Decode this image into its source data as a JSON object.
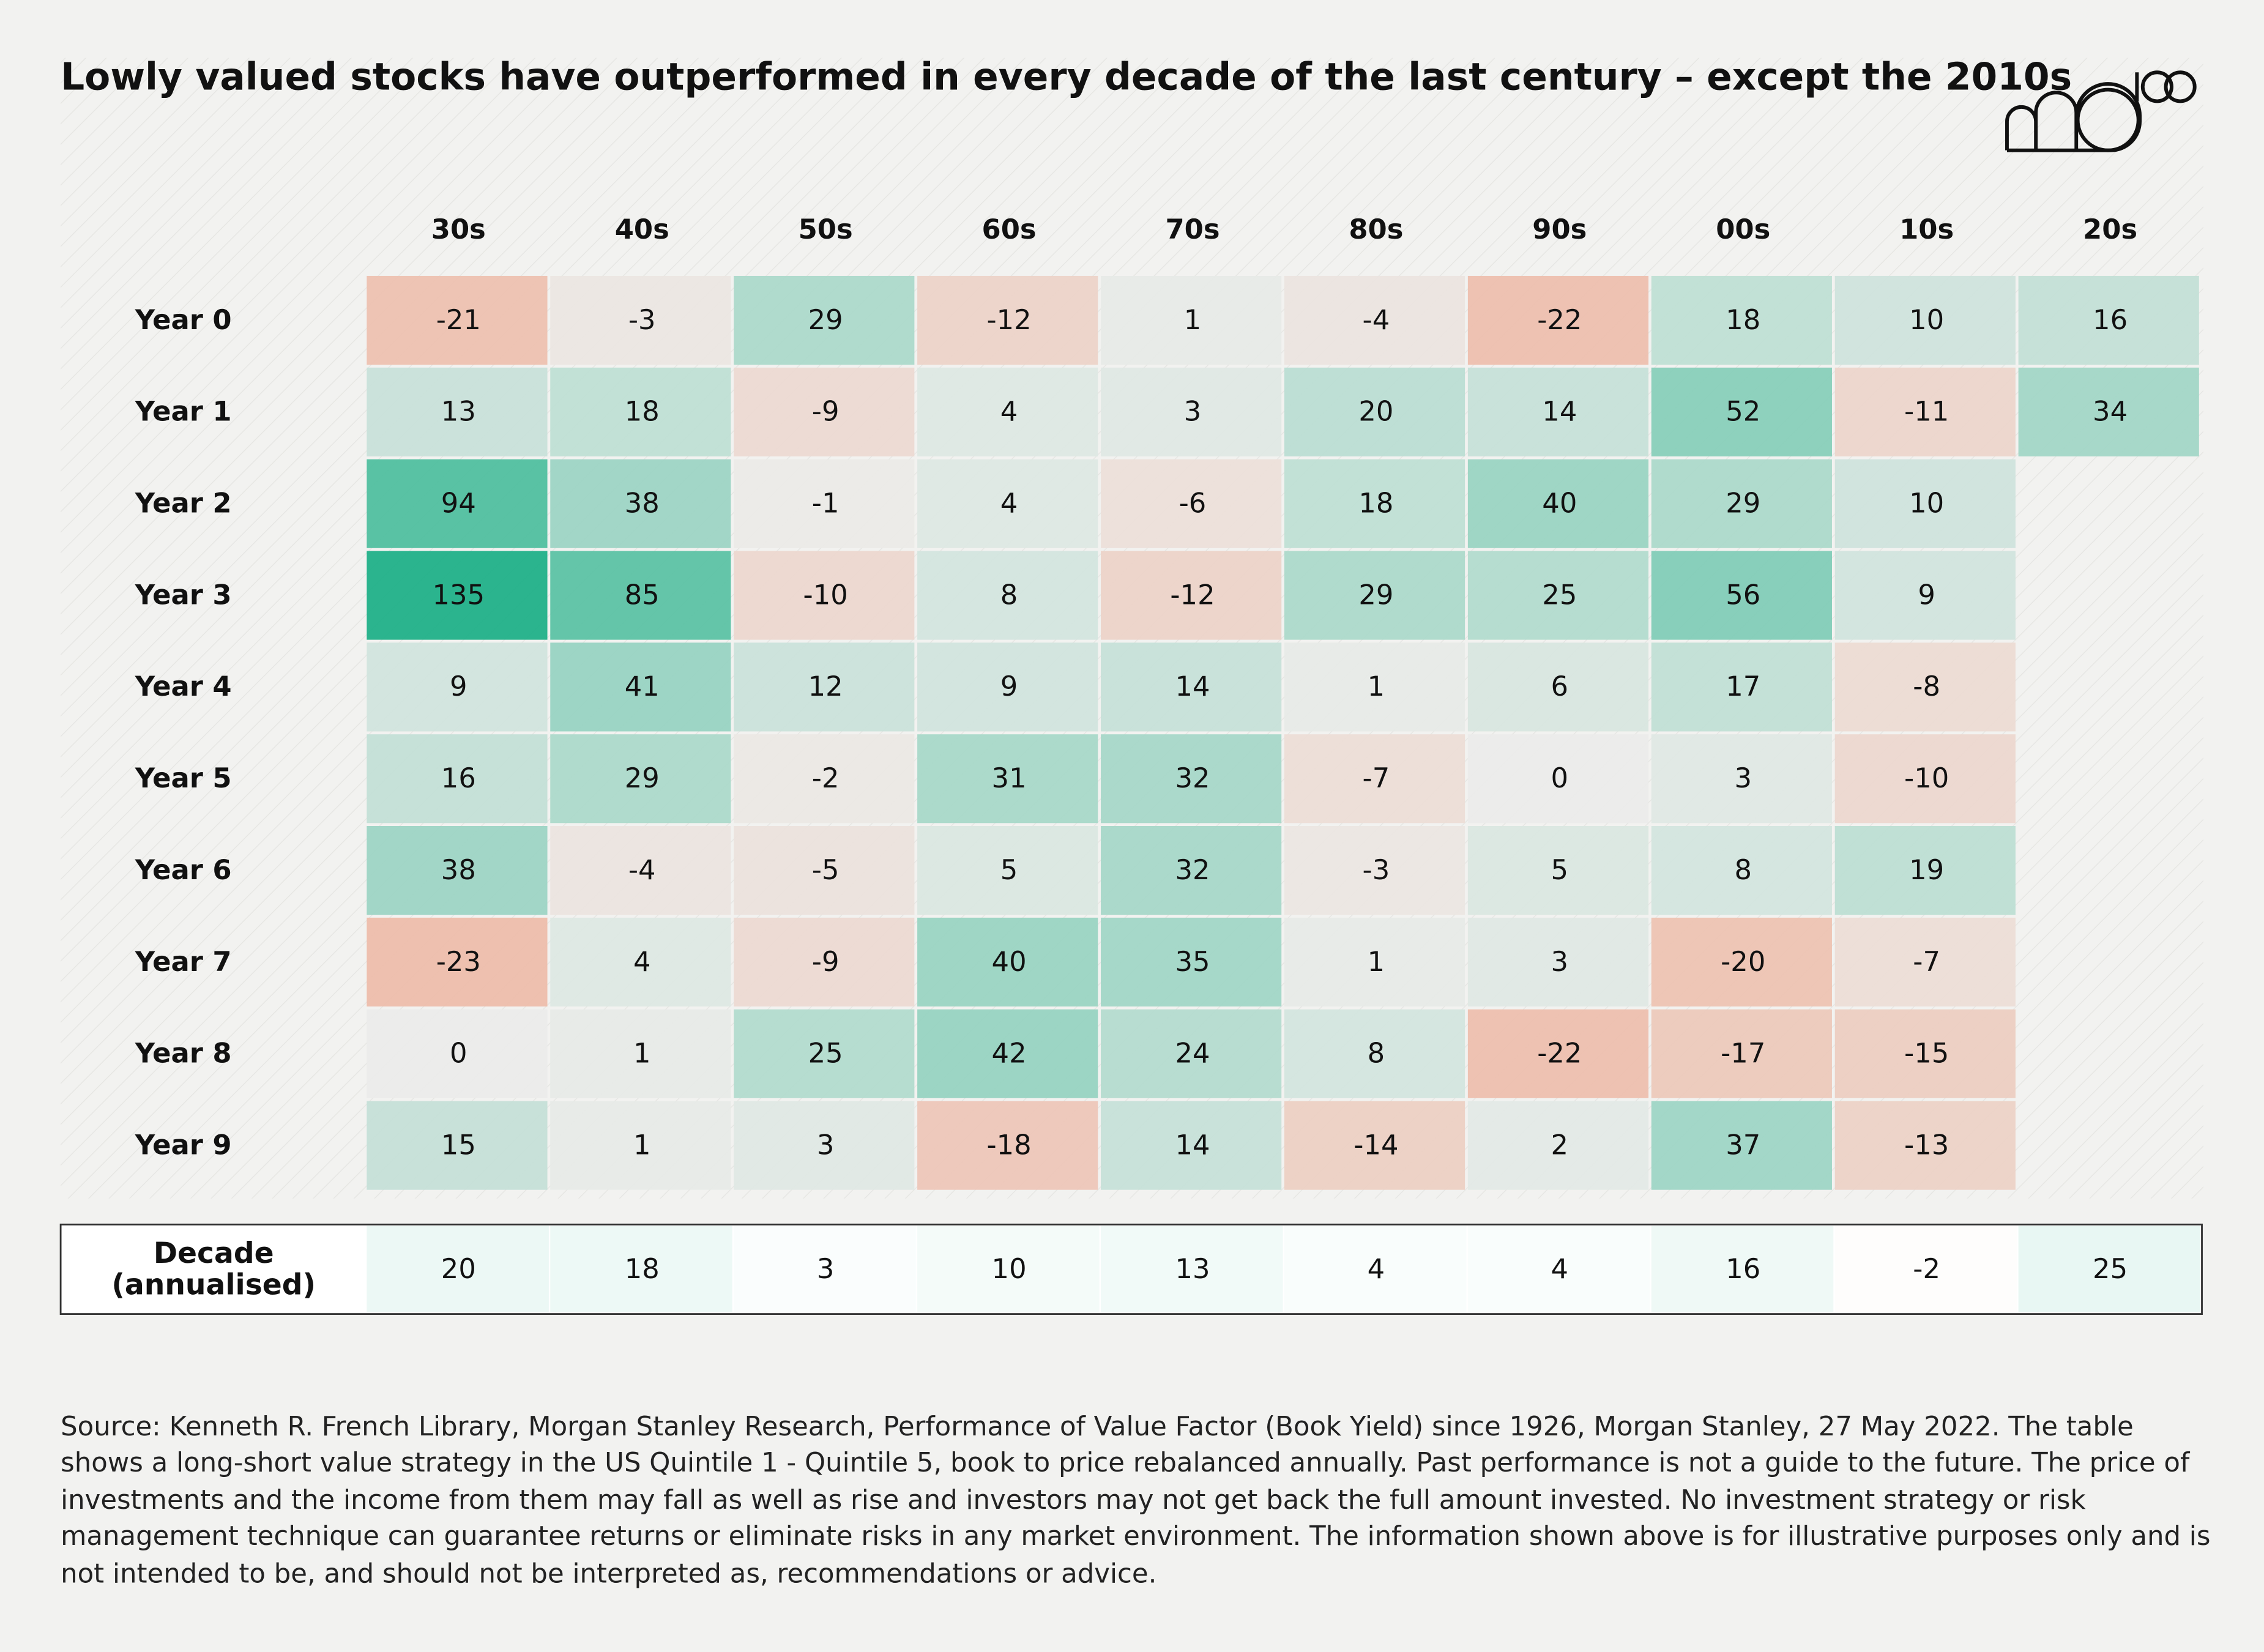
{
  "chart_data": {
    "type": "heatmap",
    "title": "Lowly valued stocks have outperformed in every decade of the last century – except the 2010s",
    "columns": [
      "30s",
      "40s",
      "50s",
      "60s",
      "70s",
      "80s",
      "90s",
      "00s",
      "10s",
      "20s"
    ],
    "rows": [
      "Year 0",
      "Year 1",
      "Year 2",
      "Year 3",
      "Year 4",
      "Year 5",
      "Year 6",
      "Year 7",
      "Year 8",
      "Year 9"
    ],
    "values": [
      [
        -21,
        -3,
        29,
        -12,
        1,
        -4,
        -22,
        18,
        10,
        16
      ],
      [
        13,
        18,
        -9,
        4,
        3,
        20,
        14,
        52,
        -11,
        34
      ],
      [
        94,
        38,
        -1,
        4,
        -6,
        18,
        40,
        29,
        10,
        null
      ],
      [
        135,
        85,
        -10,
        8,
        -12,
        29,
        25,
        56,
        9,
        null
      ],
      [
        9,
        41,
        12,
        9,
        14,
        1,
        6,
        17,
        -8,
        null
      ],
      [
        16,
        29,
        -2,
        31,
        32,
        -7,
        0,
        3,
        -10,
        null
      ],
      [
        38,
        -4,
        -5,
        5,
        32,
        -3,
        5,
        8,
        19,
        null
      ],
      [
        -23,
        4,
        -9,
        40,
        35,
        1,
        3,
        -20,
        -7,
        null
      ],
      [
        0,
        1,
        25,
        42,
        24,
        8,
        -22,
        -17,
        -15,
        null
      ],
      [
        15,
        1,
        3,
        -18,
        14,
        -14,
        2,
        37,
        -13,
        null
      ]
    ],
    "summary": {
      "label": [
        "Decade",
        "(annualised)"
      ],
      "values": [
        20,
        18,
        3,
        10,
        13,
        4,
        4,
        16,
        -2,
        25
      ]
    },
    "positive_color": "#1aaf85",
    "negative_color": "#eebca9",
    "source": "Source: Kenneth R. French Library, Morgan Stanley Research, Performance of Value Factor (Book Yield) since 1926, Morgan Stanley, 27 May 2022. The table shows a long-short value strategy in the US Quintile 1 - Quintile 5, book to price rebalanced annually. Past performance is not a guide to the future. The price of investments and the income from them may fall as well as rise and investors may not get back the full amount invested. No investment strategy or risk management technique can guarantee returns or eliminate risks in any market environment. The information shown above is for illustrative purposes only and is not intended to be, and should not be interpreted as, recommendations or advice."
  }
}
